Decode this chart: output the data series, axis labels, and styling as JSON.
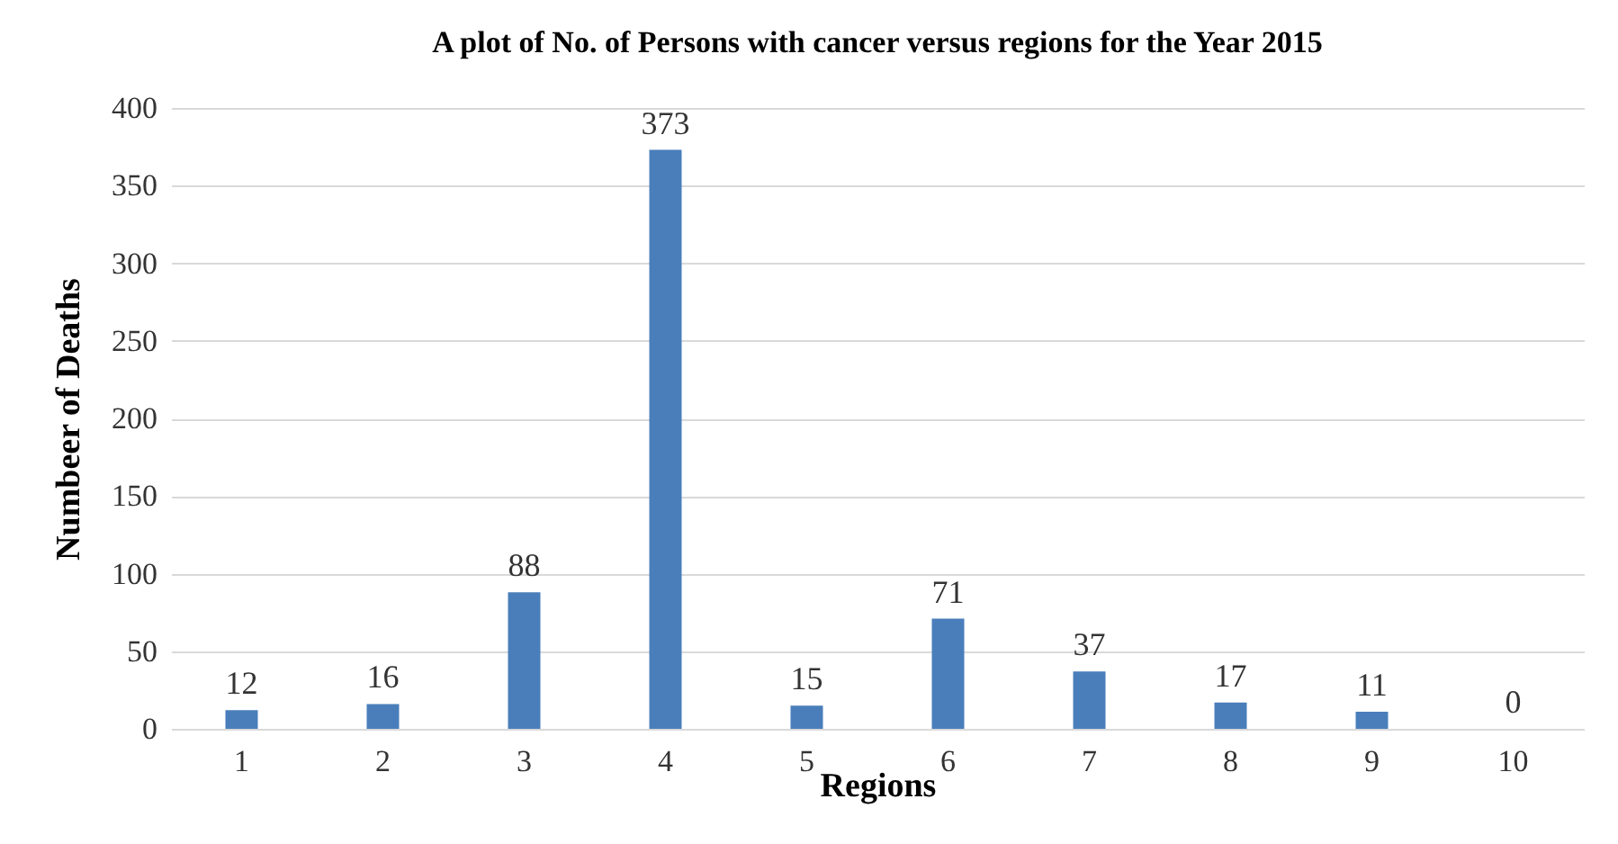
{
  "chart_data": {
    "type": "bar",
    "title": "A plot of No. of Persons with cancer versus regions for  the Year 2015",
    "xlabel": "Regions",
    "ylabel": "Numbeer of Deaths",
    "categories": [
      "1",
      "2",
      "3",
      "4",
      "5",
      "6",
      "7",
      "8",
      "9",
      "10"
    ],
    "values": [
      12,
      16,
      88,
      373,
      15,
      71,
      37,
      17,
      11,
      0
    ],
    "color": "#4a7ebb",
    "ylim": [
      0,
      400
    ],
    "yticks": [
      0,
      50,
      100,
      150,
      200,
      250,
      300,
      350,
      400
    ],
    "grid": "y",
    "data_labels": true
  }
}
